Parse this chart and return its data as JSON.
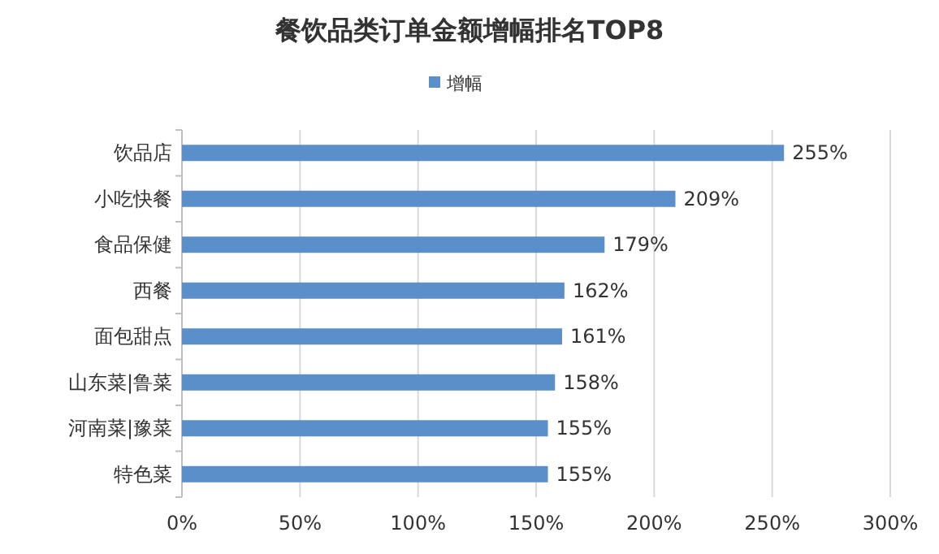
{
  "chart_data": {
    "type": "bar",
    "orientation": "horizontal",
    "title": "餐饮品类订单金额增幅排名TOP8",
    "categories": [
      "饮品店",
      "小吃快餐",
      "食品保健",
      "西餐",
      "面包甜点",
      "山东菜|鲁菜",
      "河南菜|豫菜",
      "特色菜"
    ],
    "series": [
      {
        "name": "增幅",
        "color": "#5b8fc9",
        "values": [
          255,
          209,
          179,
          162,
          161,
          158,
          155,
          155
        ],
        "value_labels": [
          "255%",
          "209%",
          "179%",
          "162%",
          "161%",
          "158%",
          "155%",
          "155%"
        ]
      }
    ],
    "xlim": [
      0,
      300
    ],
    "xticks": [
      {
        "value": 0,
        "label": "0%"
      },
      {
        "value": 50,
        "label": "50%"
      },
      {
        "value": 100,
        "label": "100%"
      },
      {
        "value": 150,
        "label": "150%"
      },
      {
        "value": 200,
        "label": "200%"
      },
      {
        "value": 250,
        "label": "250%"
      },
      {
        "value": 300,
        "label": "300%"
      }
    ],
    "grid": "x",
    "legend": "top"
  }
}
